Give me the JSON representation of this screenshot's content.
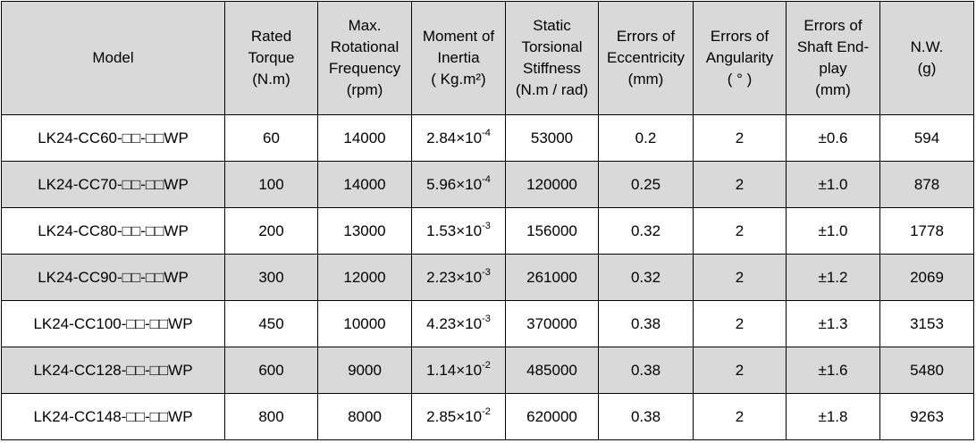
{
  "table": {
    "header": [
      [
        "Model"
      ],
      [
        "Rated",
        "Torque",
        "(N.m)"
      ],
      [
        "Max.",
        "Rotational",
        "Frequency",
        "(rpm)"
      ],
      [
        "Moment of",
        "Inertia",
        "( Kg.m²)"
      ],
      [
        "Static",
        "Torsional",
        "Stiffness",
        "(N.m / rad)"
      ],
      [
        "Errors of",
        "Eccentricity",
        "(mm)"
      ],
      [
        "Errors of",
        "Angularity",
        "( ° )"
      ],
      [
        "Errors of",
        "Shaft End-",
        "play",
        "(mm)"
      ],
      [
        "N.W.",
        "(g)"
      ]
    ],
    "rows": [
      [
        "LK24-CC60-□□-□□WP",
        "60",
        "14000",
        {
          "mantissa": "2.84×10",
          "exponent": "-4"
        },
        "53000",
        "0.2",
        "2",
        "±0.6",
        "594"
      ],
      [
        "LK24-CC70-□□-□□WP",
        "100",
        "14000",
        {
          "mantissa": "5.96×10",
          "exponent": "-4"
        },
        "120000",
        "0.25",
        "2",
        "±1.0",
        "878"
      ],
      [
        "LK24-CC80-□□-□□WP",
        "200",
        "13000",
        {
          "mantissa": "1.53×10",
          "exponent": "-3"
        },
        "156000",
        "0.32",
        "2",
        "±1.0",
        "1778"
      ],
      [
        "LK24-CC90-□□-□□WP",
        "300",
        "12000",
        {
          "mantissa": "2.23×10",
          "exponent": "-3"
        },
        "261000",
        "0.32",
        "2",
        "±1.2",
        "2069"
      ],
      [
        "LK24-CC100-□□-□□WP",
        "450",
        "10000",
        {
          "mantissa": "4.23×10",
          "exponent": "-3"
        },
        "370000",
        "0.38",
        "2",
        "±1.3",
        "3153"
      ],
      [
        "LK24-CC128-□□-□□WP",
        "600",
        "9000",
        {
          "mantissa": "1.14×10",
          "exponent": "-2"
        },
        "485000",
        "0.38",
        "2",
        "±1.6",
        "5480"
      ],
      [
        "LK24-CC148-□□-□□WP",
        "800",
        "8000",
        {
          "mantissa": "2.85×10",
          "exponent": "-2"
        },
        "620000",
        "0.38",
        "2",
        "±1.8",
        "9263"
      ]
    ]
  }
}
